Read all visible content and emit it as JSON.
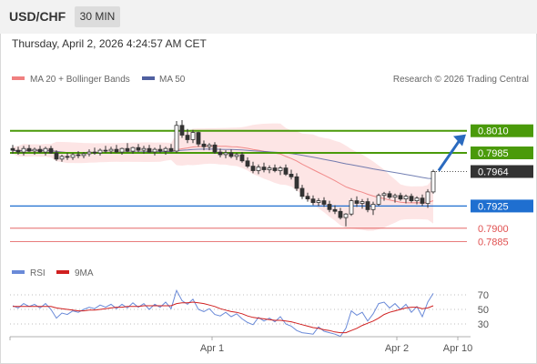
{
  "header": {
    "symbol": "USD/CHF",
    "interval": "30 MIN",
    "datetime": "Thursday, April 2, 2026 4:24:57 AM CET"
  },
  "legend": {
    "ma20": "MA 20 + Bollinger Bands",
    "ma50": "MA 50",
    "copyright": "Research © 2026 Trading Central",
    "rsi": "RSI",
    "rsi_ma": "9MA"
  },
  "colors": {
    "ma20": "#f08080",
    "ma50": "#5060a0",
    "bands": "#fde0e0",
    "green_level": "#4a9a0a",
    "blue_level": "#1f6fd0",
    "red_level": "#e05050",
    "last_price": "#333333",
    "arrow": "#2a6abf",
    "rsi": "#6a8ad8",
    "rsi_ma": "#d02020"
  },
  "chart_data": [
    {
      "type": "candlestick",
      "x_ticks": [
        "Apr 1",
        "Apr 2",
        "Apr 10"
      ],
      "ylim": [
        0.787,
        0.806
      ],
      "levels": [
        {
          "value": "0.8010",
          "kind": "resistance"
        },
        {
          "value": "0.7985",
          "kind": "resistance"
        },
        {
          "value": "0.7964",
          "kind": "last"
        },
        {
          "value": "0.7925",
          "kind": "pivot"
        },
        {
          "value": "0.7900",
          "kind": "support"
        },
        {
          "value": "0.7885",
          "kind": "support"
        }
      ],
      "candles": [
        [
          0.799,
          0.7994,
          0.7984,
          0.7988
        ],
        [
          0.7988,
          0.7992,
          0.7983,
          0.7986
        ],
        [
          0.7986,
          0.7993,
          0.7982,
          0.799
        ],
        [
          0.799,
          0.7994,
          0.7986,
          0.7987
        ],
        [
          0.7987,
          0.7991,
          0.7983,
          0.7989
        ],
        [
          0.7989,
          0.7993,
          0.7985,
          0.7986
        ],
        [
          0.7986,
          0.7992,
          0.7982,
          0.799
        ],
        [
          0.799,
          0.7993,
          0.7984,
          0.7985
        ],
        [
          0.7985,
          0.7988,
          0.7976,
          0.7978
        ],
        [
          0.7978,
          0.7983,
          0.7975,
          0.7981
        ],
        [
          0.7981,
          0.7985,
          0.7977,
          0.798
        ],
        [
          0.798,
          0.7985,
          0.7977,
          0.7983
        ],
        [
          0.7983,
          0.7987,
          0.7979,
          0.7982
        ],
        [
          0.7982,
          0.7986,
          0.7979,
          0.7984
        ],
        [
          0.7984,
          0.7989,
          0.7981,
          0.7986
        ],
        [
          0.7986,
          0.7991,
          0.7983,
          0.7985
        ],
        [
          0.7985,
          0.799,
          0.7982,
          0.7988
        ],
        [
          0.7988,
          0.7993,
          0.7985,
          0.7987
        ],
        [
          0.7987,
          0.7992,
          0.7984,
          0.7989
        ],
        [
          0.7989,
          0.7994,
          0.7985,
          0.7986
        ],
        [
          0.7986,
          0.7991,
          0.7983,
          0.799
        ],
        [
          0.799,
          0.7996,
          0.7986,
          0.7987
        ],
        [
          0.7987,
          0.7992,
          0.7984,
          0.7991
        ],
        [
          0.7991,
          0.7995,
          0.7986,
          0.7988
        ],
        [
          0.7988,
          0.7993,
          0.7984,
          0.799
        ],
        [
          0.799,
          0.7994,
          0.7985,
          0.7986
        ],
        [
          0.7986,
          0.7991,
          0.7982,
          0.7989
        ],
        [
          0.7989,
          0.7994,
          0.7985,
          0.7987
        ],
        [
          0.7987,
          0.7992,
          0.7983,
          0.799
        ],
        [
          0.799,
          0.7995,
          0.7986,
          0.7987
        ],
        [
          0.7987,
          0.8021,
          0.7985,
          0.8016
        ],
        [
          0.8016,
          0.8022,
          0.8002,
          0.8005
        ],
        [
          0.8005,
          0.8012,
          0.7996,
          0.8
        ],
        [
          0.8,
          0.8011,
          0.7996,
          0.8008
        ],
        [
          0.8008,
          0.8009,
          0.7992,
          0.7995
        ],
        [
          0.7995,
          0.7999,
          0.7988,
          0.7992
        ],
        [
          0.7992,
          0.7996,
          0.7988,
          0.7994
        ],
        [
          0.7994,
          0.7997,
          0.7984,
          0.7986
        ],
        [
          0.7986,
          0.799,
          0.798,
          0.7983
        ],
        [
          0.7983,
          0.7988,
          0.7979,
          0.7985
        ],
        [
          0.7985,
          0.7989,
          0.7979,
          0.7981
        ],
        [
          0.7981,
          0.7985,
          0.7977,
          0.7983
        ],
        [
          0.7983,
          0.7986,
          0.7974,
          0.7976
        ],
        [
          0.7976,
          0.798,
          0.7968,
          0.797
        ],
        [
          0.797,
          0.7975,
          0.7962,
          0.7965
        ],
        [
          0.7965,
          0.7972,
          0.7961,
          0.7969
        ],
        [
          0.7969,
          0.7974,
          0.7963,
          0.7966
        ],
        [
          0.7966,
          0.7971,
          0.7962,
          0.7968
        ],
        [
          0.7968,
          0.7972,
          0.7963,
          0.7965
        ],
        [
          0.7965,
          0.797,
          0.796,
          0.7968
        ],
        [
          0.7968,
          0.7972,
          0.7959,
          0.7961
        ],
        [
          0.7961,
          0.7966,
          0.7955,
          0.7958
        ],
        [
          0.7958,
          0.7962,
          0.7942,
          0.7945
        ],
        [
          0.7945,
          0.7949,
          0.7933,
          0.7936
        ],
        [
          0.7936,
          0.794,
          0.793,
          0.7933
        ],
        [
          0.7933,
          0.7937,
          0.7926,
          0.7929
        ],
        [
          0.7929,
          0.7934,
          0.7925,
          0.7931
        ],
        [
          0.7931,
          0.7935,
          0.7924,
          0.7927
        ],
        [
          0.7927,
          0.7931,
          0.7918,
          0.7921
        ],
        [
          0.7921,
          0.7926,
          0.7916,
          0.7919
        ],
        [
          0.7919,
          0.7923,
          0.791,
          0.7912
        ],
        [
          0.7912,
          0.7917,
          0.7902,
          0.7916
        ],
        [
          0.7916,
          0.7934,
          0.7914,
          0.7931
        ],
        [
          0.7931,
          0.7936,
          0.7924,
          0.7928
        ],
        [
          0.7928,
          0.7933,
          0.7922,
          0.793
        ],
        [
          0.793,
          0.7934,
          0.7918,
          0.7921
        ],
        [
          0.7921,
          0.793,
          0.7915,
          0.7927
        ],
        [
          0.7927,
          0.7939,
          0.7925,
          0.7937
        ],
        [
          0.7937,
          0.7941,
          0.7931,
          0.7939
        ],
        [
          0.7939,
          0.7942,
          0.7933,
          0.7935
        ],
        [
          0.7935,
          0.7939,
          0.7929,
          0.7937
        ],
        [
          0.7937,
          0.794,
          0.7931,
          0.7933
        ],
        [
          0.7933,
          0.7938,
          0.7928,
          0.7936
        ],
        [
          0.7936,
          0.7939,
          0.7929,
          0.7931
        ],
        [
          0.7931,
          0.7936,
          0.7927,
          0.7934
        ],
        [
          0.7934,
          0.7938,
          0.7925,
          0.7928
        ],
        [
          0.7928,
          0.7944,
          0.7923,
          0.7941
        ],
        [
          0.7941,
          0.7966,
          0.7939,
          0.7964
        ]
      ]
    },
    {
      "type": "line",
      "name": "RSI",
      "y_ticks": [
        "70",
        "50",
        "30"
      ],
      "ylim": [
        15,
        85
      ],
      "series": [
        {
          "name": "RSI",
          "values": [
            55,
            52,
            58,
            54,
            57,
            52,
            58,
            50,
            38,
            45,
            43,
            48,
            46,
            50,
            53,
            51,
            56,
            53,
            57,
            51,
            57,
            52,
            59,
            53,
            58,
            50,
            57,
            53,
            60,
            51,
            76,
            62,
            57,
            64,
            50,
            47,
            51,
            43,
            41,
            46,
            40,
            44,
            37,
            32,
            29,
            39,
            34,
            38,
            33,
            40,
            30,
            27,
            21,
            18,
            17,
            16,
            26,
            20,
            18,
            16,
            13,
            24,
            48,
            42,
            46,
            34,
            44,
            58,
            60,
            52,
            58,
            50,
            57,
            46,
            54,
            40,
            60,
            72
          ]
        },
        {
          "name": "9MA",
          "values": [
            54,
            54,
            54,
            54,
            54,
            54,
            54,
            54,
            52,
            51,
            50,
            49,
            48,
            48,
            49,
            49,
            50,
            51,
            52,
            53,
            53,
            54,
            54,
            54,
            55,
            55,
            55,
            55,
            55,
            55,
            58,
            59,
            59,
            60,
            59,
            58,
            56,
            54,
            51,
            49,
            47,
            46,
            44,
            41,
            39,
            38,
            37,
            36,
            35,
            35,
            34,
            33,
            31,
            29,
            27,
            25,
            24,
            22,
            21,
            19,
            18,
            18,
            21,
            24,
            28,
            31,
            34,
            38,
            43,
            46,
            48,
            50,
            52,
            53,
            53,
            51,
            52,
            55
          ]
        }
      ]
    }
  ]
}
